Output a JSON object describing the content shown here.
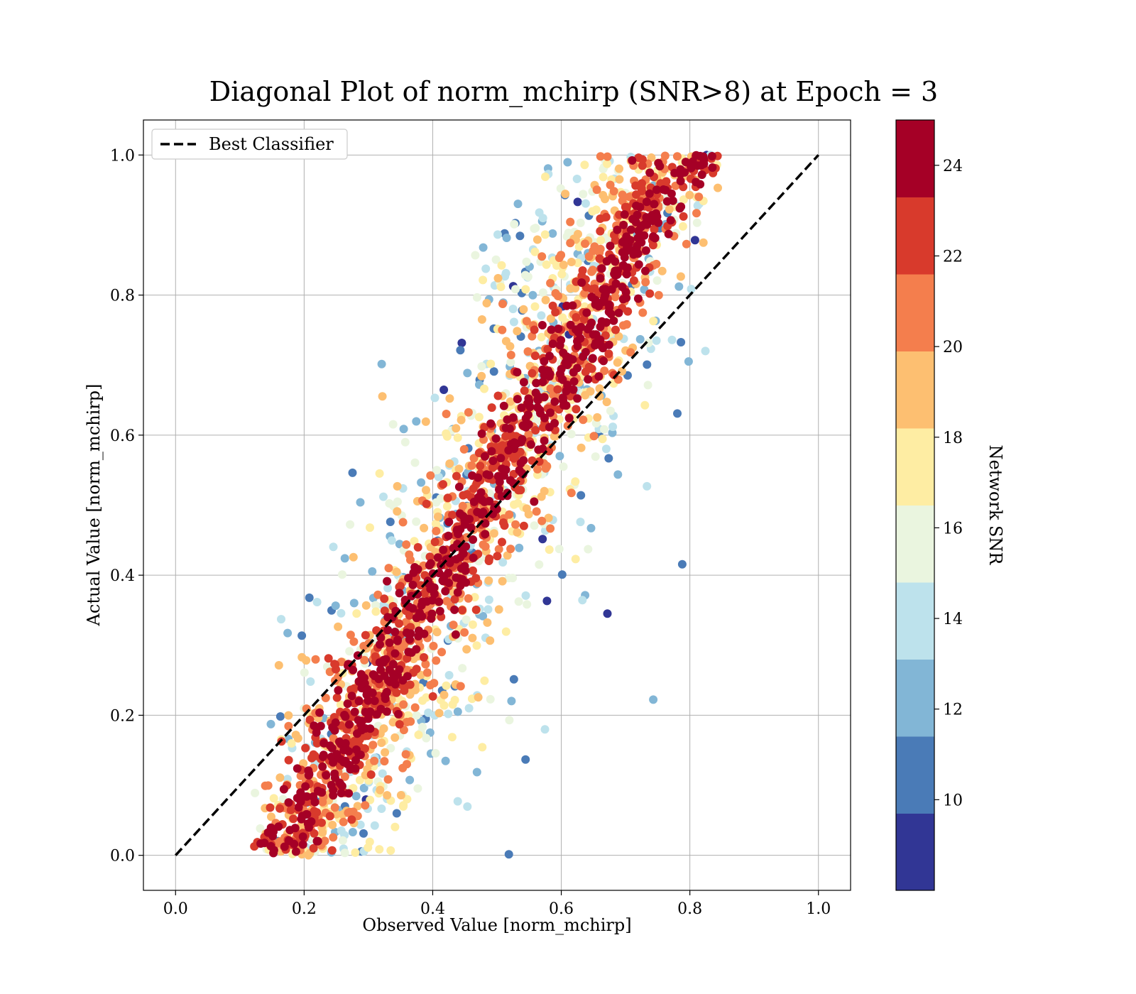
{
  "chart_data": {
    "type": "scatter",
    "title": "Diagonal Plot of norm_mchirp (SNR>8) at Epoch = 3",
    "xlabel": "Observed Value [norm_mchirp]",
    "ylabel": "Actual Value [norm_mchirp]",
    "xlim": [
      -0.05,
      1.05
    ],
    "ylim": [
      -0.05,
      1.05
    ],
    "xticks": [
      "0.0",
      "0.2",
      "0.4",
      "0.6",
      "0.8",
      "1.0"
    ],
    "yticks": [
      "0.0",
      "0.2",
      "0.4",
      "0.6",
      "0.8",
      "1.0"
    ],
    "grid": true,
    "legend": {
      "position": "top-left",
      "entries": [
        "Best Classifier"
      ]
    },
    "reference_line": {
      "name": "Best Classifier",
      "style": "dashed",
      "color": "#000000",
      "x": [
        0.0,
        1.0
      ],
      "y": [
        0.0,
        1.0
      ]
    },
    "colorbar": {
      "label": "Network SNR",
      "range": [
        8,
        25
      ],
      "ticks": [
        "10",
        "12",
        "14",
        "16",
        "18",
        "20",
        "22",
        "24"
      ],
      "bins": [
        {
          "from": 8,
          "to": 9.7,
          "color": "#313695"
        },
        {
          "from": 9.7,
          "to": 11.4,
          "color": "#4a7bb7"
        },
        {
          "from": 11.4,
          "to": 13.1,
          "color": "#82b6d6"
        },
        {
          "from": 13.1,
          "to": 14.8,
          "color": "#bde2ec"
        },
        {
          "from": 14.8,
          "to": 16.5,
          "color": "#eaf5df"
        },
        {
          "from": 16.5,
          "to": 18.2,
          "color": "#feeda3"
        },
        {
          "from": 18.2,
          "to": 19.9,
          "color": "#fdbf71"
        },
        {
          "from": 19.9,
          "to": 21.6,
          "color": "#f47e4d"
        },
        {
          "from": 21.6,
          "to": 23.3,
          "color": "#d83a2c"
        },
        {
          "from": 23.3,
          "to": 25,
          "color": "#a50026"
        }
      ]
    },
    "point_distribution": {
      "x_range": [
        0.12,
        0.88
      ],
      "y_range": [
        0.0,
        1.0
      ],
      "description_of_trend": "dense band along y=x, high SNR near diagonal, low SNR scattered far from diagonal"
    }
  }
}
